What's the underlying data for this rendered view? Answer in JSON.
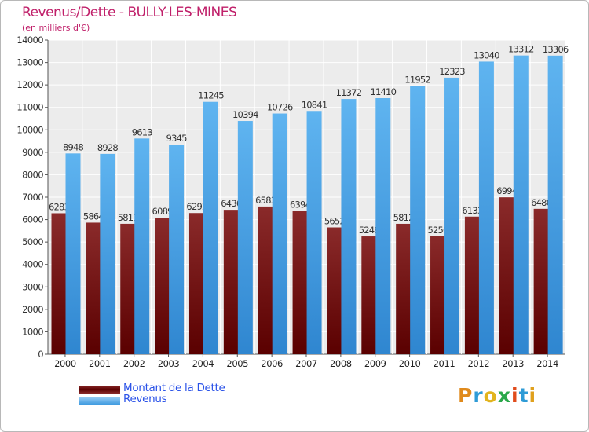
{
  "header": {
    "title": "Revenus/Dette - BULLY-LES-MINES",
    "subtitle": "(en milliers d'€)"
  },
  "legend": {
    "items": [
      {
        "label": "Montant de la Dette",
        "color": "#6a1010"
      },
      {
        "label": "Revenus",
        "color": "#3f9be0"
      }
    ]
  },
  "logo": {
    "text": "Proxiti",
    "colors": [
      "#e08a1c",
      "#2e9bd6",
      "#e2b41e",
      "#2aa84a",
      "#e04c1c",
      "#2e9bd6",
      "#e0a01c"
    ]
  },
  "chart_data": {
    "type": "bar",
    "categories": [
      "2000",
      "2001",
      "2002",
      "2003",
      "2004",
      "2005",
      "2006",
      "2007",
      "2008",
      "2009",
      "2010",
      "2011",
      "2012",
      "2013",
      "2014"
    ],
    "series": [
      {
        "name": "Montant de la Dette",
        "color": "#6a1010",
        "values": [
          6283,
          5864,
          5813,
          6089,
          6292,
          6436,
          6583,
          6394,
          5652,
          5249,
          5812,
          5250,
          6133,
          6994,
          6480
        ],
        "labels": [
          "6283",
          "5864",
          "5813",
          "6089",
          "6292",
          "6436",
          "6583",
          "6394",
          "5652",
          "5249",
          "5812",
          "5250",
          "6133",
          "6994",
          "6480"
        ]
      },
      {
        "name": "Revenus",
        "color": "#3f9be0",
        "values": [
          8948,
          8928,
          9613,
          9345,
          11245,
          10394,
          10726,
          10841,
          11372,
          11410,
          11952,
          12323,
          13040,
          13312,
          13306
        ],
        "labels": [
          "8948",
          "8928",
          "9613",
          "9345",
          "11245",
          "10394",
          "10726",
          "10841",
          "11372",
          "11410",
          "11952",
          "12323",
          "13040",
          "13312",
          "13306"
        ]
      }
    ],
    "yticks": [
      "0",
      "1000",
      "2000",
      "3000",
      "4000",
      "5000",
      "6000",
      "7000",
      "8000",
      "9000",
      "10000",
      "11000",
      "12000",
      "13000",
      "14000"
    ],
    "ylim": [
      0,
      14000
    ],
    "grid": true
  }
}
